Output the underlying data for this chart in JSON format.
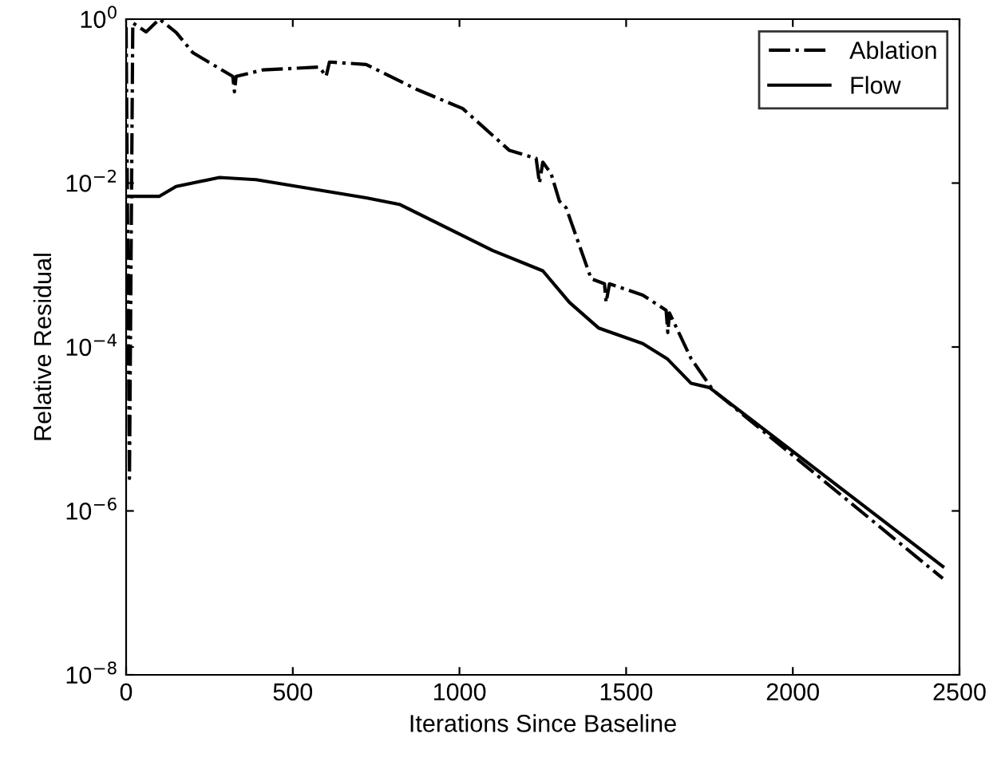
{
  "chart_data": {
    "type": "line",
    "xlabel": "Iterations Since Baseline",
    "ylabel": "Relative Residual",
    "log": "y",
    "xlim": [
      0,
      2500
    ],
    "xticks": [
      0,
      500,
      1000,
      1500,
      2000,
      2500
    ],
    "ylim": [
      1e-08,
      1
    ],
    "yticks": [
      {
        "value": 1e-08,
        "label": "10$^{−8}$"
      },
      {
        "value": 1e-06,
        "label": "10$^{−6}$"
      },
      {
        "value": 0.0001,
        "label": "10$^{−4}$"
      },
      {
        "value": 0.01,
        "label": "10$^{−2}$"
      },
      {
        "value": 1,
        "label": "10$^{0}$"
      }
    ],
    "grid": false,
    "legend": "top right",
    "marker": "none",
    "series": [
      {
        "name": "Ablation",
        "color": "#000000",
        "line_style": "dashdot",
        "x": [
          0,
          10,
          20,
          60,
          100,
          150,
          200,
          320,
          325,
          330,
          410,
          580,
          600,
          610,
          720,
          870,
          1010,
          1150,
          1230,
          1240,
          1250,
          1275,
          1300,
          1320,
          1395,
          1435,
          1440,
          1450,
          1550,
          1620,
          1625,
          1630,
          1695,
          1760,
          2450
        ],
        "values": [
          0.8,
          2.5e-06,
          0.9,
          0.7,
          1.0,
          0.69,
          0.39,
          0.2,
          0.13,
          0.2,
          0.24,
          0.26,
          0.2,
          0.3,
          0.28,
          0.14,
          0.081,
          0.025,
          0.02,
          0.01,
          0.018,
          0.013,
          0.006,
          0.005,
          0.00068,
          0.00059,
          0.00035,
          0.00059,
          0.00043,
          0.00028,
          0.00015,
          0.00026,
          7.2e-05,
          3e-05,
          1.5e-07
        ]
      },
      {
        "name": "Flow",
        "color": "#000000",
        "line_style": "solid",
        "x": [
          0,
          100,
          150,
          280,
          390,
          720,
          820,
          1100,
          1250,
          1330,
          1418,
          1550,
          1623,
          1695,
          1750,
          2450
        ],
        "values": [
          0.0069,
          0.0069,
          0.0091,
          0.0117,
          0.011,
          0.0066,
          0.0055,
          0.0015,
          0.00085,
          0.00035,
          0.00017,
          0.00011,
          7.2e-05,
          3.6e-05,
          3.2e-05,
          2.1e-07
        ]
      }
    ]
  }
}
